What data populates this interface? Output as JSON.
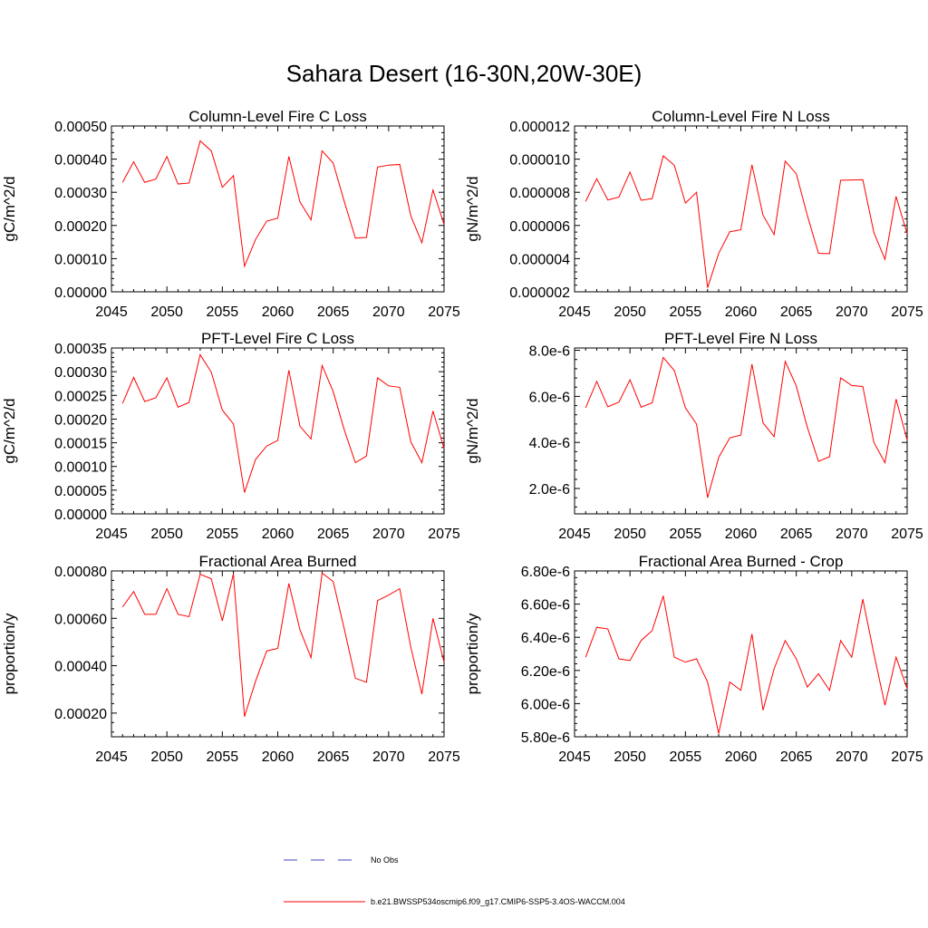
{
  "title": "Sahara Desert (16-30N,20W-30E)",
  "colors": {
    "series": "#ff0000",
    "no_obs": "#4040c0",
    "axis": "#000000"
  },
  "legend": {
    "no_obs_label": "No Obs",
    "series_label": "b.e21.BWSSP534oscmip6.f09_g17.CMIP6-SSP5-3.4OS-WACCM.004"
  },
  "chart_data": [
    {
      "type": "line",
      "title": "Column-Level Fire C Loss",
      "ylabel": "gC/m^2/d",
      "xlim": [
        2045,
        2075
      ],
      "ylim": [
        0,
        0.0005
      ],
      "xticks": [
        2045,
        2050,
        2055,
        2060,
        2065,
        2070,
        2075
      ],
      "xtick_labels": [
        "2045",
        "2050",
        "2055",
        "2060",
        "2065",
        "2070",
        "2075"
      ],
      "yticks": [
        0,
        0.0001,
        0.0002,
        0.0003,
        0.0004,
        0.0005
      ],
      "ytick_labels": [
        "0.00000",
        "0.00010",
        "0.00020",
        "0.00030",
        "0.00040",
        "0.00050"
      ],
      "x": [
        2046,
        2047,
        2048,
        2049,
        2050,
        2051,
        2052,
        2053,
        2054,
        2055,
        2056,
        2057,
        2058,
        2059,
        2060,
        2061,
        2062,
        2063,
        2064,
        2065,
        2066,
        2067,
        2068,
        2069,
        2070,
        2071,
        2072,
        2073,
        2074,
        2075
      ],
      "series": [
        {
          "values": [
            0.00033,
            0.000392,
            0.00033,
            0.00034,
            0.000408,
            0.000325,
            0.000328,
            0.000455,
            0.000425,
            0.000315,
            0.00035,
            7.7e-05,
            0.000158,
            0.000213,
            0.000222,
            0.000408,
            0.000271,
            0.000217,
            0.000425,
            0.000388,
            0.000272,
            0.000162,
            0.000164,
            0.000376,
            0.000382,
            0.000384,
            0.000229,
            0.000148,
            0.000307,
            0.000203
          ]
        }
      ]
    },
    {
      "type": "line",
      "title": "Column-Level Fire N Loss",
      "ylabel": "gN/m^2/d",
      "xlim": [
        2045,
        2075
      ],
      "ylim": [
        2e-06,
        1.2e-05
      ],
      "xticks": [
        2045,
        2050,
        2055,
        2060,
        2065,
        2070,
        2075
      ],
      "xtick_labels": [
        "2045",
        "2050",
        "2055",
        "2060",
        "2065",
        "2070",
        "2075"
      ],
      "yticks": [
        2e-06,
        4e-06,
        6e-06,
        8e-06,
        1e-05,
        1.2e-05
      ],
      "ytick_labels": [
        "0.000002",
        "0.000004",
        "0.000006",
        "0.000008",
        "0.000010",
        "0.000012"
      ],
      "x": [
        2046,
        2047,
        2048,
        2049,
        2050,
        2051,
        2052,
        2053,
        2054,
        2055,
        2056,
        2057,
        2058,
        2059,
        2060,
        2061,
        2062,
        2063,
        2064,
        2065,
        2066,
        2067,
        2068,
        2069,
        2070,
        2071,
        2072,
        2073,
        2074,
        2075
      ],
      "series": [
        {
          "values": [
            7.45e-06,
            8.82e-06,
            7.54e-06,
            7.71e-06,
            9.22e-06,
            7.52e-06,
            7.62e-06,
            1.02e-05,
            9.63e-06,
            7.35e-06,
            8e-06,
            2.25e-06,
            4.32e-06,
            5.62e-06,
            5.74e-06,
            9.66e-06,
            6.62e-06,
            5.45e-06,
            9.88e-06,
            9.12e-06,
            6.6e-06,
            4.32e-06,
            4.3e-06,
            8.73e-06,
            8.74e-06,
            8.76e-06,
            5.57e-06,
            3.96e-06,
            7.75e-06,
            5.5e-06
          ]
        }
      ]
    },
    {
      "type": "line",
      "title": "PFT-Level Fire C Loss",
      "ylabel": "gC/m^2/d",
      "xlim": [
        2045,
        2075
      ],
      "ylim": [
        0,
        0.00035
      ],
      "xticks": [
        2045,
        2050,
        2055,
        2060,
        2065,
        2070,
        2075
      ],
      "xtick_labels": [
        "2045",
        "2050",
        "2055",
        "2060",
        "2065",
        "2070",
        "2075"
      ],
      "yticks": [
        0,
        5e-05,
        0.0001,
        0.00015,
        0.0002,
        0.00025,
        0.0003,
        0.00035
      ],
      "ytick_labels": [
        "0.00000",
        "0.00005",
        "0.00010",
        "0.00015",
        "0.00020",
        "0.00025",
        "0.00030",
        "0.00035"
      ],
      "x": [
        2046,
        2047,
        2048,
        2049,
        2050,
        2051,
        2052,
        2053,
        2054,
        2055,
        2056,
        2057,
        2058,
        2059,
        2060,
        2061,
        2062,
        2063,
        2064,
        2065,
        2066,
        2067,
        2068,
        2069,
        2070,
        2071,
        2072,
        2073,
        2074,
        2075
      ],
      "series": [
        {
          "values": [
            0.000233,
            0.000288,
            0.000237,
            0.000245,
            0.000287,
            0.000225,
            0.000235,
            0.000336,
            0.000299,
            0.000219,
            0.00019,
            4.5e-05,
            0.000115,
            0.000143,
            0.000155,
            0.000303,
            0.000185,
            0.000158,
            0.000313,
            0.000258,
            0.000177,
            0.000108,
            0.000122,
            0.000287,
            0.00027,
            0.000267,
            0.000152,
            0.000108,
            0.000217,
            0.000138
          ]
        }
      ]
    },
    {
      "type": "line",
      "title": "PFT-Level Fire N Loss",
      "ylabel": "gN/m^2/d",
      "xlim": [
        2045,
        2075
      ],
      "ylim": [
        9e-07,
        8.1e-06
      ],
      "xticks": [
        2045,
        2050,
        2055,
        2060,
        2065,
        2070,
        2075
      ],
      "xtick_labels": [
        "2045",
        "2050",
        "2055",
        "2060",
        "2065",
        "2070",
        "2075"
      ],
      "yticks": [
        2e-06,
        4e-06,
        6e-06,
        8e-06
      ],
      "ytick_labels": [
        "2.0e-6",
        "4.0e-6",
        "6.0e-6",
        "8.0e-6"
      ],
      "x": [
        2046,
        2047,
        2048,
        2049,
        2050,
        2051,
        2052,
        2053,
        2054,
        2055,
        2056,
        2057,
        2058,
        2059,
        2060,
        2061,
        2062,
        2063,
        2064,
        2065,
        2066,
        2067,
        2068,
        2069,
        2070,
        2071,
        2072,
        2073,
        2074,
        2075
      ],
      "series": [
        {
          "values": [
            5.5e-06,
            6.65e-06,
            5.55e-06,
            5.75e-06,
            6.72e-06,
            5.53e-06,
            5.72e-06,
            7.69e-06,
            7.12e-06,
            5.5e-06,
            4.8e-06,
            1.6e-06,
            3.35e-06,
            4.2e-06,
            4.32e-06,
            7.4e-06,
            4.85e-06,
            4.25e-06,
            7.52e-06,
            6.45e-06,
            4.65e-06,
            3.18e-06,
            3.38e-06,
            6.8e-06,
            6.47e-06,
            6.43e-06,
            4e-06,
            3.12e-06,
            5.88e-06,
            4.1e-06
          ]
        }
      ]
    },
    {
      "type": "line",
      "title": "Fractional Area Burned",
      "ylabel": "proportion/y",
      "xlim": [
        2045,
        2075
      ],
      "ylim": [
        0.0001,
        0.0008
      ],
      "xticks": [
        2045,
        2050,
        2055,
        2060,
        2065,
        2070,
        2075
      ],
      "xtick_labels": [
        "2045",
        "2050",
        "2055",
        "2060",
        "2065",
        "2070",
        "2075"
      ],
      "yticks": [
        0.0002,
        0.0004,
        0.0006,
        0.0008
      ],
      "ytick_labels": [
        "0.00020",
        "0.00040",
        "0.00060",
        "0.00080"
      ],
      "x": [
        2046,
        2047,
        2048,
        2049,
        2050,
        2051,
        2052,
        2053,
        2054,
        2055,
        2056,
        2057,
        2058,
        2059,
        2060,
        2061,
        2062,
        2063,
        2064,
        2065,
        2066,
        2067,
        2068,
        2069,
        2070,
        2071,
        2072,
        2073,
        2074,
        2075
      ],
      "series": [
        {
          "values": [
            0.000648,
            0.000713,
            0.000617,
            0.000617,
            0.000725,
            0.000617,
            0.000607,
            0.000786,
            0.000767,
            0.000589,
            0.000788,
            0.000185,
            0.000335,
            0.000462,
            0.000473,
            0.000747,
            0.000552,
            0.000434,
            0.000791,
            0.000755,
            0.000555,
            0.000347,
            0.00033,
            0.000675,
            0.000698,
            0.000725,
            0.000478,
            0.00028,
            0.0006,
            0.000415
          ]
        }
      ]
    },
    {
      "type": "line",
      "title": "Fractional Area Burned - Crop",
      "ylabel": "proportion/y",
      "xlim": [
        2045,
        2075
      ],
      "ylim": [
        5.8e-06,
        6.8e-06
      ],
      "xticks": [
        2045,
        2050,
        2055,
        2060,
        2065,
        2070,
        2075
      ],
      "xtick_labels": [
        "2045",
        "2050",
        "2055",
        "2060",
        "2065",
        "2070",
        "2075"
      ],
      "yticks": [
        5.8e-06,
        6e-06,
        6.2e-06,
        6.4e-06,
        6.6e-06,
        6.8e-06
      ],
      "ytick_labels": [
        "5.80e-6",
        "6.00e-6",
        "6.20e-6",
        "6.40e-6",
        "6.60e-6",
        "6.80e-6"
      ],
      "x": [
        2046,
        2047,
        2048,
        2049,
        2050,
        2051,
        2052,
        2053,
        2054,
        2055,
        2056,
        2057,
        2058,
        2059,
        2060,
        2061,
        2062,
        2063,
        2064,
        2065,
        2066,
        2067,
        2068,
        2069,
        2070,
        2071,
        2072,
        2073,
        2074,
        2075
      ],
      "series": [
        {
          "values": [
            6.28e-06,
            6.46e-06,
            6.45e-06,
            6.27e-06,
            6.26e-06,
            6.38e-06,
            6.44e-06,
            6.65e-06,
            6.28e-06,
            6.25e-06,
            6.27e-06,
            6.13e-06,
            5.82e-06,
            6.13e-06,
            6.08e-06,
            6.42e-06,
            5.96e-06,
            6.21e-06,
            6.38e-06,
            6.27e-06,
            6.1e-06,
            6.18e-06,
            6.08e-06,
            6.38e-06,
            6.28e-06,
            6.63e-06,
            6.3e-06,
            5.99e-06,
            6.28e-06,
            6.09e-06
          ]
        }
      ]
    }
  ]
}
